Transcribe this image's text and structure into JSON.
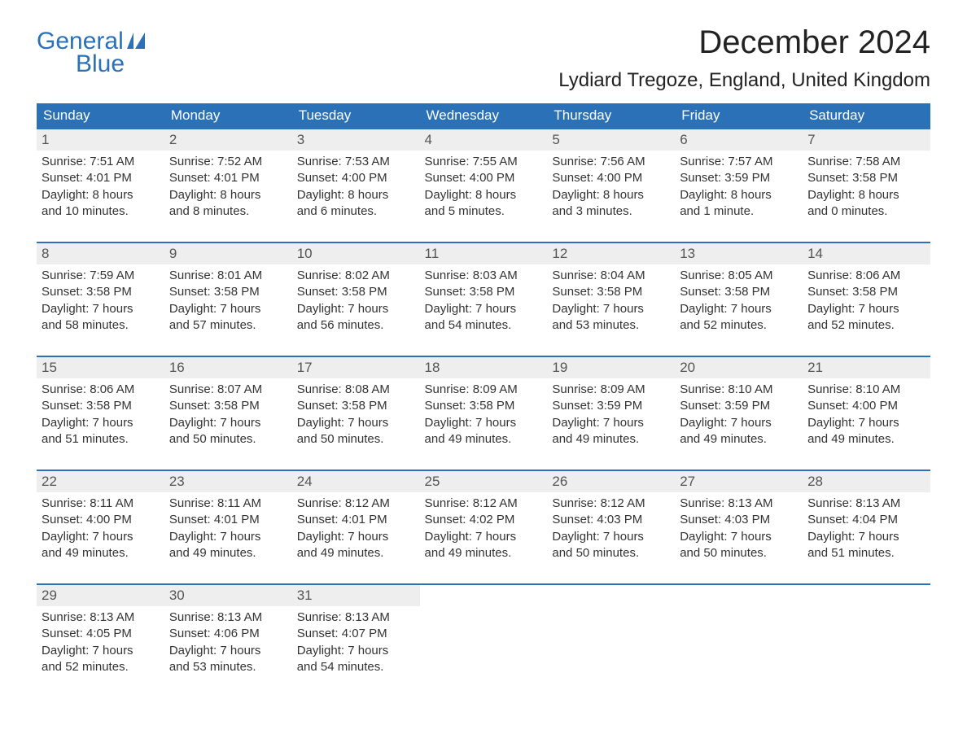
{
  "brand": {
    "top": "General",
    "bottom": "Blue",
    "color": "#2a71b8"
  },
  "title": "December 2024",
  "location": "Lydiard Tregoze, England, United Kingdom",
  "colors": {
    "header_bg": "#2a71b8",
    "header_text": "#ffffff",
    "daynum_bg": "#eeeeee",
    "rule": "#2a71b8",
    "body_text": "#333333",
    "page_bg": "#ffffff"
  },
  "fonts": {
    "title_pt": 40,
    "location_pt": 24,
    "header_pt": 17,
    "body_pt": 15
  },
  "day_headers": [
    "Sunday",
    "Monday",
    "Tuesday",
    "Wednesday",
    "Thursday",
    "Friday",
    "Saturday"
  ],
  "weeks": [
    [
      {
        "n": "1",
        "sunrise": "Sunrise: 7:51 AM",
        "sunset": "Sunset: 4:01 PM",
        "d1": "Daylight: 8 hours",
        "d2": "and 10 minutes."
      },
      {
        "n": "2",
        "sunrise": "Sunrise: 7:52 AM",
        "sunset": "Sunset: 4:01 PM",
        "d1": "Daylight: 8 hours",
        "d2": "and 8 minutes."
      },
      {
        "n": "3",
        "sunrise": "Sunrise: 7:53 AM",
        "sunset": "Sunset: 4:00 PM",
        "d1": "Daylight: 8 hours",
        "d2": "and 6 minutes."
      },
      {
        "n": "4",
        "sunrise": "Sunrise: 7:55 AM",
        "sunset": "Sunset: 4:00 PM",
        "d1": "Daylight: 8 hours",
        "d2": "and 5 minutes."
      },
      {
        "n": "5",
        "sunrise": "Sunrise: 7:56 AM",
        "sunset": "Sunset: 4:00 PM",
        "d1": "Daylight: 8 hours",
        "d2": "and 3 minutes."
      },
      {
        "n": "6",
        "sunrise": "Sunrise: 7:57 AM",
        "sunset": "Sunset: 3:59 PM",
        "d1": "Daylight: 8 hours",
        "d2": "and 1 minute."
      },
      {
        "n": "7",
        "sunrise": "Sunrise: 7:58 AM",
        "sunset": "Sunset: 3:58 PM",
        "d1": "Daylight: 8 hours",
        "d2": "and 0 minutes."
      }
    ],
    [
      {
        "n": "8",
        "sunrise": "Sunrise: 7:59 AM",
        "sunset": "Sunset: 3:58 PM",
        "d1": "Daylight: 7 hours",
        "d2": "and 58 minutes."
      },
      {
        "n": "9",
        "sunrise": "Sunrise: 8:01 AM",
        "sunset": "Sunset: 3:58 PM",
        "d1": "Daylight: 7 hours",
        "d2": "and 57 minutes."
      },
      {
        "n": "10",
        "sunrise": "Sunrise: 8:02 AM",
        "sunset": "Sunset: 3:58 PM",
        "d1": "Daylight: 7 hours",
        "d2": "and 56 minutes."
      },
      {
        "n": "11",
        "sunrise": "Sunrise: 8:03 AM",
        "sunset": "Sunset: 3:58 PM",
        "d1": "Daylight: 7 hours",
        "d2": "and 54 minutes."
      },
      {
        "n": "12",
        "sunrise": "Sunrise: 8:04 AM",
        "sunset": "Sunset: 3:58 PM",
        "d1": "Daylight: 7 hours",
        "d2": "and 53 minutes."
      },
      {
        "n": "13",
        "sunrise": "Sunrise: 8:05 AM",
        "sunset": "Sunset: 3:58 PM",
        "d1": "Daylight: 7 hours",
        "d2": "and 52 minutes."
      },
      {
        "n": "14",
        "sunrise": "Sunrise: 8:06 AM",
        "sunset": "Sunset: 3:58 PM",
        "d1": "Daylight: 7 hours",
        "d2": "and 52 minutes."
      }
    ],
    [
      {
        "n": "15",
        "sunrise": "Sunrise: 8:06 AM",
        "sunset": "Sunset: 3:58 PM",
        "d1": "Daylight: 7 hours",
        "d2": "and 51 minutes."
      },
      {
        "n": "16",
        "sunrise": "Sunrise: 8:07 AM",
        "sunset": "Sunset: 3:58 PM",
        "d1": "Daylight: 7 hours",
        "d2": "and 50 minutes."
      },
      {
        "n": "17",
        "sunrise": "Sunrise: 8:08 AM",
        "sunset": "Sunset: 3:58 PM",
        "d1": "Daylight: 7 hours",
        "d2": "and 50 minutes."
      },
      {
        "n": "18",
        "sunrise": "Sunrise: 8:09 AM",
        "sunset": "Sunset: 3:58 PM",
        "d1": "Daylight: 7 hours",
        "d2": "and 49 minutes."
      },
      {
        "n": "19",
        "sunrise": "Sunrise: 8:09 AM",
        "sunset": "Sunset: 3:59 PM",
        "d1": "Daylight: 7 hours",
        "d2": "and 49 minutes."
      },
      {
        "n": "20",
        "sunrise": "Sunrise: 8:10 AM",
        "sunset": "Sunset: 3:59 PM",
        "d1": "Daylight: 7 hours",
        "d2": "and 49 minutes."
      },
      {
        "n": "21",
        "sunrise": "Sunrise: 8:10 AM",
        "sunset": "Sunset: 4:00 PM",
        "d1": "Daylight: 7 hours",
        "d2": "and 49 minutes."
      }
    ],
    [
      {
        "n": "22",
        "sunrise": "Sunrise: 8:11 AM",
        "sunset": "Sunset: 4:00 PM",
        "d1": "Daylight: 7 hours",
        "d2": "and 49 minutes."
      },
      {
        "n": "23",
        "sunrise": "Sunrise: 8:11 AM",
        "sunset": "Sunset: 4:01 PM",
        "d1": "Daylight: 7 hours",
        "d2": "and 49 minutes."
      },
      {
        "n": "24",
        "sunrise": "Sunrise: 8:12 AM",
        "sunset": "Sunset: 4:01 PM",
        "d1": "Daylight: 7 hours",
        "d2": "and 49 minutes."
      },
      {
        "n": "25",
        "sunrise": "Sunrise: 8:12 AM",
        "sunset": "Sunset: 4:02 PM",
        "d1": "Daylight: 7 hours",
        "d2": "and 49 minutes."
      },
      {
        "n": "26",
        "sunrise": "Sunrise: 8:12 AM",
        "sunset": "Sunset: 4:03 PM",
        "d1": "Daylight: 7 hours",
        "d2": "and 50 minutes."
      },
      {
        "n": "27",
        "sunrise": "Sunrise: 8:13 AM",
        "sunset": "Sunset: 4:03 PM",
        "d1": "Daylight: 7 hours",
        "d2": "and 50 minutes."
      },
      {
        "n": "28",
        "sunrise": "Sunrise: 8:13 AM",
        "sunset": "Sunset: 4:04 PM",
        "d1": "Daylight: 7 hours",
        "d2": "and 51 minutes."
      }
    ],
    [
      {
        "n": "29",
        "sunrise": "Sunrise: 8:13 AM",
        "sunset": "Sunset: 4:05 PM",
        "d1": "Daylight: 7 hours",
        "d2": "and 52 minutes."
      },
      {
        "n": "30",
        "sunrise": "Sunrise: 8:13 AM",
        "sunset": "Sunset: 4:06 PM",
        "d1": "Daylight: 7 hours",
        "d2": "and 53 minutes."
      },
      {
        "n": "31",
        "sunrise": "Sunrise: 8:13 AM",
        "sunset": "Sunset: 4:07 PM",
        "d1": "Daylight: 7 hours",
        "d2": "and 54 minutes."
      },
      null,
      null,
      null,
      null
    ]
  ]
}
